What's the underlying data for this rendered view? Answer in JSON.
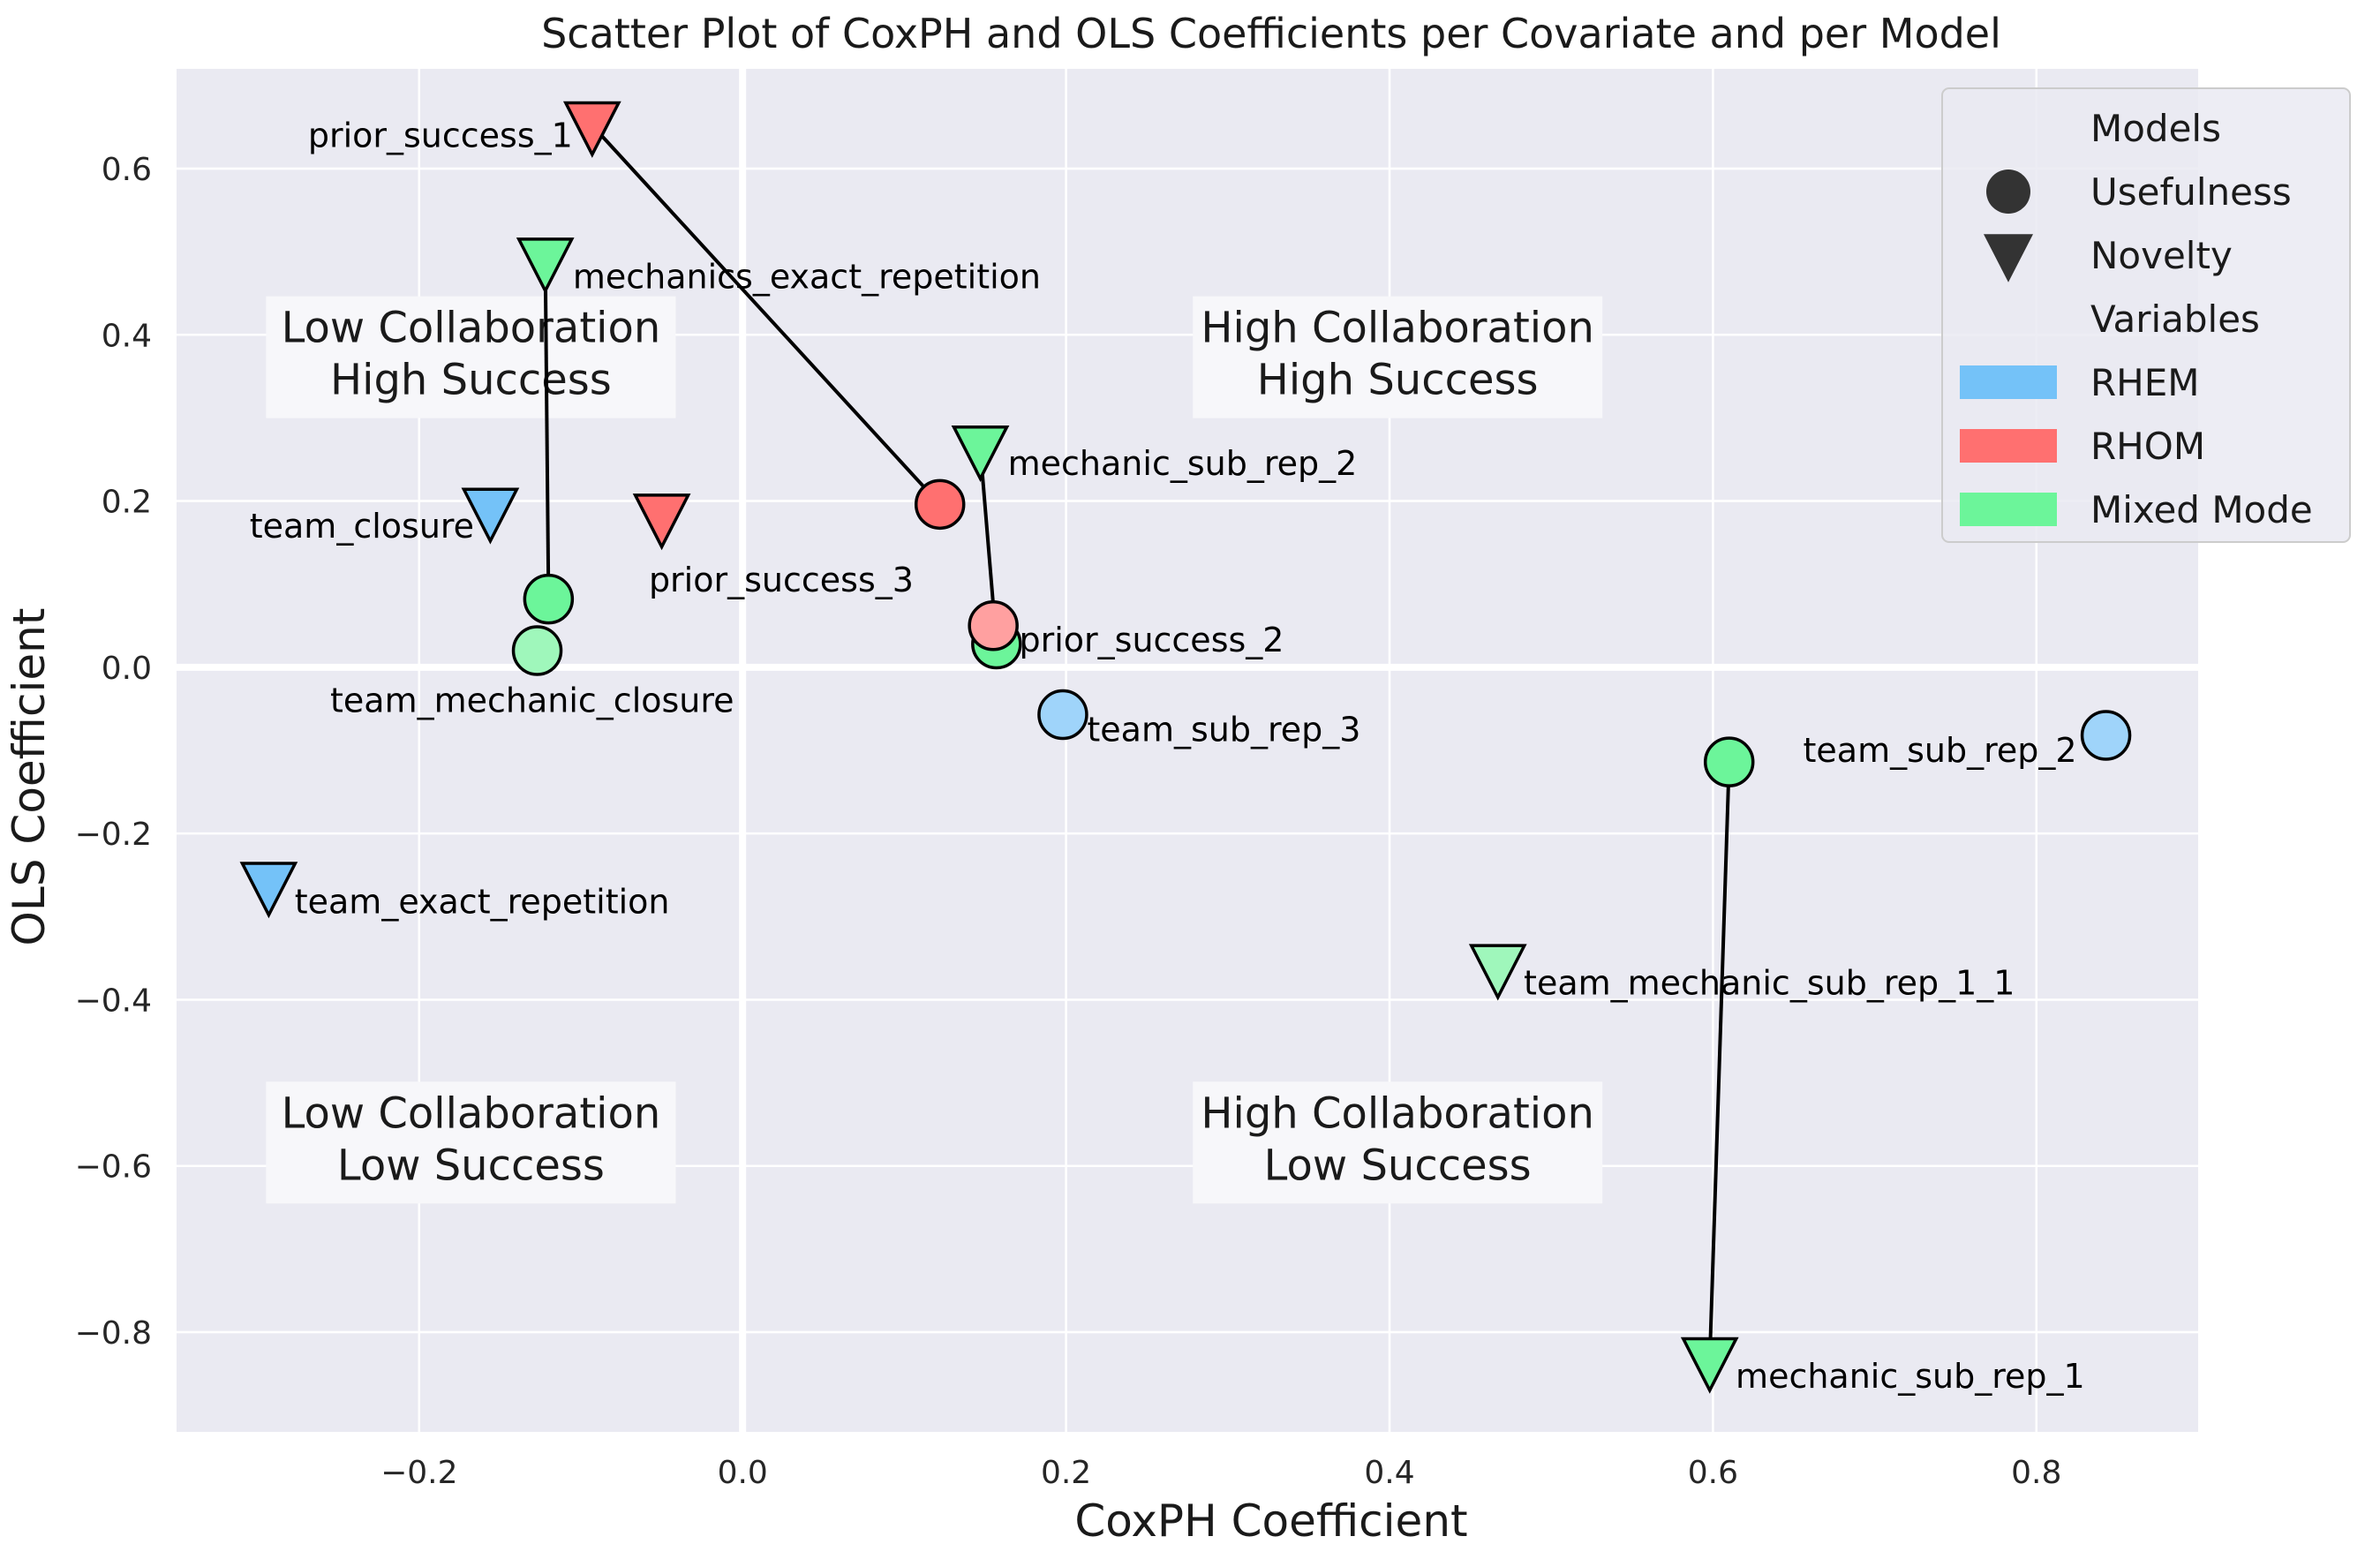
{
  "chart_data": {
    "type": "scatter",
    "title": "Scatter Plot of CoxPH and OLS Coefficients per Covariate and per Model",
    "xlabel": "CoxPH Coefficient",
    "ylabel": "OLS Coefficient",
    "xlim": [
      -0.35,
      0.9
    ],
    "ylim": [
      -0.92,
      0.72
    ],
    "xticks": [
      {
        "value": -0.2,
        "label": "−0.2"
      },
      {
        "value": 0.0,
        "label": "0.0"
      },
      {
        "value": 0.2,
        "label": "0.2"
      },
      {
        "value": 0.4,
        "label": "0.4"
      },
      {
        "value": 0.6,
        "label": "0.6"
      },
      {
        "value": 0.8,
        "label": "0.8"
      }
    ],
    "yticks": [
      {
        "value": -0.8,
        "label": "−0.8"
      },
      {
        "value": -0.6,
        "label": "−0.6"
      },
      {
        "value": -0.4,
        "label": "−0.4"
      },
      {
        "value": -0.2,
        "label": "−0.2"
      },
      {
        "value": 0.0,
        "label": "0.0"
      },
      {
        "value": 0.2,
        "label": "0.2"
      },
      {
        "value": 0.4,
        "label": "0.4"
      },
      {
        "value": 0.6,
        "label": "0.6"
      }
    ],
    "grid": true,
    "colors": {
      "RHEM": "#74c2f8",
      "RHEM_light": "#9fd4fa",
      "RHOM": "#ff7070",
      "RHOM_light": "#ffa0a0",
      "Mixed Mode": "#6cf59a",
      "Mixed Mode_light": "#9ff7bb"
    },
    "quadrant_labels": [
      {
        "lines": [
          "Low Collaboration",
          "High Success"
        ],
        "x": -0.168,
        "y": 0.355
      },
      {
        "lines": [
          "High Collaboration",
          "High Success"
        ],
        "x": 0.405,
        "y": 0.355
      },
      {
        "lines": [
          "Low Collaboration",
          "Low Success"
        ],
        "x": -0.168,
        "y": -0.59
      },
      {
        "lines": [
          "High Collaboration",
          "Low Success"
        ],
        "x": 0.405,
        "y": -0.59
      }
    ],
    "points": [
      {
        "label": "",
        "model": "Usefulness",
        "variable": "RHEM",
        "shade": "light",
        "x": 0.843,
        "y": -0.082
      },
      {
        "label": "",
        "model": "Usefulness",
        "variable": "RHEM",
        "shade": "light",
        "x": 0.198,
        "y": -0.057
      },
      {
        "label": "",
        "model": "Usefulness",
        "variable": "Mixed Mode",
        "shade": "base",
        "x": 0.61,
        "y": -0.114
      },
      {
        "label": "",
        "model": "Usefulness",
        "variable": "Mixed Mode",
        "shade": "base",
        "x": 0.157,
        "y": 0.028
      },
      {
        "label": "",
        "model": "Usefulness",
        "variable": "Mixed Mode",
        "shade": "base",
        "x": -0.12,
        "y": 0.082
      },
      {
        "label": "",
        "model": "Usefulness",
        "variable": "Mixed Mode",
        "shade": "light",
        "x": -0.127,
        "y": 0.02
      },
      {
        "label": "",
        "model": "Usefulness",
        "variable": "RHOM",
        "shade": "base",
        "x": 0.122,
        "y": 0.196
      },
      {
        "label": "",
        "model": "Usefulness",
        "variable": "RHOM",
        "shade": "light",
        "x": 0.155,
        "y": 0.05
      },
      {
        "label": "",
        "model": "Novelty",
        "variable": "RHOM",
        "shade": "base",
        "x": -0.093,
        "y": 0.652
      },
      {
        "label": "",
        "model": "Novelty",
        "variable": "RHOM",
        "shade": "base",
        "x": -0.05,
        "y": 0.18
      },
      {
        "label": "",
        "model": "Novelty",
        "variable": "Mixed Mode",
        "shade": "base",
        "x": -0.122,
        "y": 0.488
      },
      {
        "label": "",
        "model": "Novelty",
        "variable": "Mixed Mode",
        "shade": "base",
        "x": 0.147,
        "y": 0.262
      },
      {
        "label": "",
        "model": "Novelty",
        "variable": "Mixed Mode",
        "shade": "light",
        "x": 0.467,
        "y": -0.362
      },
      {
        "label": "",
        "model": "Novelty",
        "variable": "Mixed Mode",
        "shade": "base",
        "x": 0.598,
        "y": -0.835
      },
      {
        "label": "",
        "model": "Novelty",
        "variable": "RHEM",
        "shade": "base",
        "x": -0.156,
        "y": 0.187
      },
      {
        "label": "",
        "model": "Novelty",
        "variable": "RHEM",
        "shade": "base",
        "x": -0.293,
        "y": -0.263
      }
    ],
    "point_labels": [
      {
        "text": "prior_success_1",
        "x": -0.105,
        "y": 0.64,
        "anchor": "end"
      },
      {
        "text": "mechanics_exact_repetition",
        "x": -0.105,
        "y": 0.47,
        "anchor": "start"
      },
      {
        "text": "mechanic_sub_rep_2",
        "x": 0.164,
        "y": 0.245,
        "anchor": "start"
      },
      {
        "text": "team_closure",
        "x": -0.166,
        "y": 0.17,
        "anchor": "end"
      },
      {
        "text": "prior_success_3",
        "x": -0.058,
        "y": 0.105,
        "anchor": "start"
      },
      {
        "text": "prior_success_2",
        "x": 0.171,
        "y": 0.033,
        "anchor": "start"
      },
      {
        "text": "team_mechanic_closure",
        "x": -0.255,
        "y": -0.04,
        "anchor": "start"
      },
      {
        "text": "team_sub_rep_3",
        "x": 0.213,
        "y": -0.075,
        "anchor": "start"
      },
      {
        "text": "team_sub_rep_2",
        "x": 0.825,
        "y": -0.1,
        "anchor": "end"
      },
      {
        "text": "team_exact_repetition",
        "x": -0.277,
        "y": -0.282,
        "anchor": "start"
      },
      {
        "text": "team_mechanic_sub_rep_1_1",
        "x": 0.483,
        "y": -0.38,
        "anchor": "start"
      },
      {
        "text": "mechanic_sub_rep_1",
        "x": 0.614,
        "y": -0.853,
        "anchor": "start"
      }
    ],
    "connections": [
      {
        "from": [
          -0.093,
          0.652
        ],
        "to": [
          0.122,
          0.196
        ]
      },
      {
        "from": [
          -0.122,
          0.488
        ],
        "to": [
          -0.12,
          0.082
        ]
      },
      {
        "from": [
          0.147,
          0.262
        ],
        "to": [
          0.157,
          0.028
        ]
      },
      {
        "from": [
          0.61,
          -0.114
        ],
        "to": [
          0.598,
          -0.835
        ]
      }
    ],
    "legend": {
      "position": "top-right",
      "models_title": "Models",
      "models": [
        {
          "label": "Usefulness",
          "marker": "circle"
        },
        {
          "label": "Novelty",
          "marker": "triangle-down"
        }
      ],
      "variables_title": "Variables",
      "variables": [
        {
          "label": "RHEM",
          "color": "#74c2f8"
        },
        {
          "label": "RHOM",
          "color": "#ff7070"
        },
        {
          "label": "Mixed Mode",
          "color": "#6cf59a"
        }
      ]
    }
  }
}
